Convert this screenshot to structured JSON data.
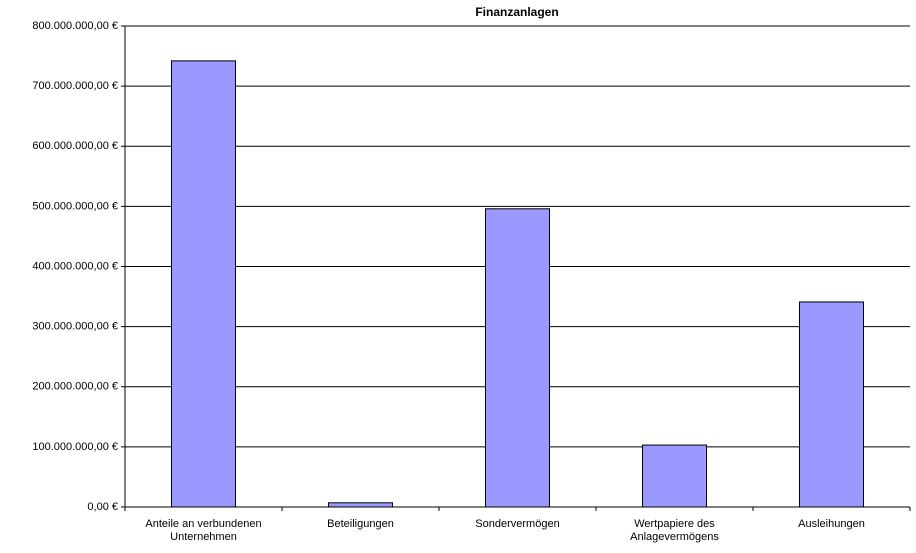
{
  "chart_data": {
    "type": "bar",
    "title": "Finanzanlagen",
    "categories": [
      "Anteile an verbundenen Unternehmen",
      "Beteiligungen",
      "Sondervermögen",
      "Wertpapiere des Anlagevermögens",
      "Ausleihungen"
    ],
    "values": [
      742000000,
      7000000,
      496000000,
      103000000,
      341000000
    ],
    "color": "#9999ff",
    "ylim": [
      0,
      800000000
    ],
    "yticks": [
      {
        "value": 0,
        "label": "0,00 €"
      },
      {
        "value": 100000000,
        "label": "100.000.000,00 €"
      },
      {
        "value": 200000000,
        "label": "200.000.000,00 €"
      },
      {
        "value": 300000000,
        "label": "300.000.000,00 €"
      },
      {
        "value": 400000000,
        "label": "400.000.000,00 €"
      },
      {
        "value": 500000000,
        "label": "500.000.000,00 €"
      },
      {
        "value": 600000000,
        "label": "600.000.000,00 €"
      },
      {
        "value": 700000000,
        "label": "700.000.000,00 €"
      },
      {
        "value": 800000000,
        "label": "800.000.000,00 €"
      }
    ],
    "grid": true
  }
}
